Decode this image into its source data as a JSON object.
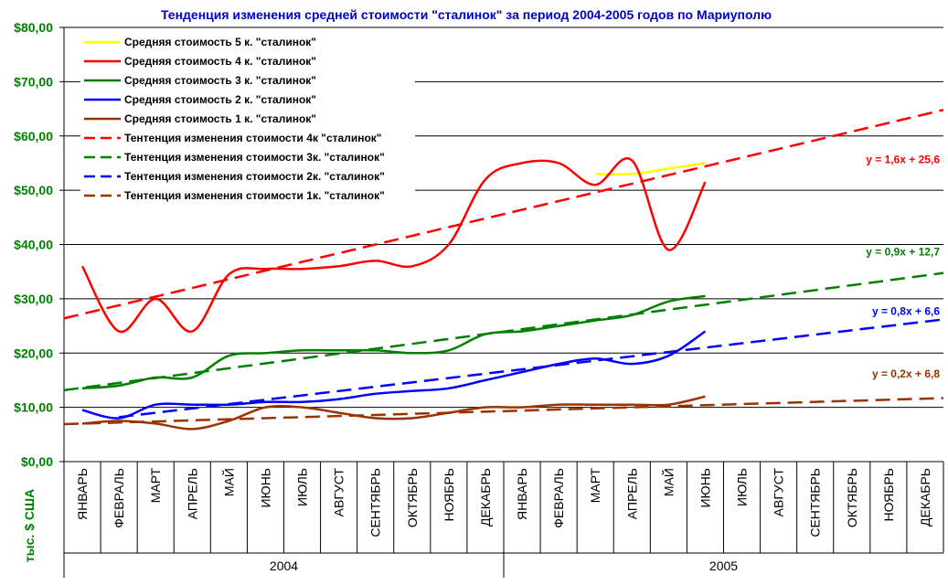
{
  "chart_data": {
    "type": "line",
    "title": "Тенденция изменения средней стоимости \"сталинок\" за период 2004-2005 годов по Мариуполю",
    "ylabel": "тыс. $ США",
    "ylim": [
      0,
      80
    ],
    "yticks": [
      "$0,00",
      "$10,00",
      "$20,00",
      "$30,00",
      "$40,00",
      "$50,00",
      "$60,00",
      "$70,00",
      "$80,00"
    ],
    "ytick_values": [
      0,
      10,
      20,
      30,
      40,
      50,
      60,
      70,
      80
    ],
    "grid": true,
    "legend_position": "top-left",
    "categories": [
      "ЯНВАРЬ",
      "ФЕВРАЛЬ",
      "МАРТ",
      "АПРЕЛЬ",
      "МАЙ",
      "ИЮНЬ",
      "ИЮЛЬ",
      "АВГУСТ",
      "СЕНТЯБРЬ",
      "ОКТЯБРЬ",
      "НОЯБРЬ",
      "ДЕКАБРЬ",
      "ЯНВАРЬ",
      "ФЕВРАЛЬ",
      "МАРТ",
      "АПРЕЛЬ",
      "МАЙ",
      "ИЮНЬ",
      "ИЮЛЬ",
      "АВГУСТ",
      "СЕНТЯБРЬ",
      "ОКТЯБРЬ",
      "НОЯБРЬ",
      "ДЕКАБРЬ"
    ],
    "years": [
      {
        "label": "2004",
        "start": 0,
        "end": 11
      },
      {
        "label": "2005",
        "start": 12,
        "end": 23
      }
    ],
    "series": [
      {
        "name": "Средняя стоимость 5 к. \"сталинок\"",
        "color": "#ffff00",
        "dash": false,
        "values": [
          null,
          null,
          null,
          null,
          null,
          null,
          null,
          null,
          null,
          null,
          null,
          null,
          null,
          null,
          53,
          53,
          54,
          55,
          null,
          null,
          null,
          null,
          null,
          null
        ]
      },
      {
        "name": "Средняя стоимость 4 к. \"сталинок\"",
        "color": "#ff0000",
        "dash": false,
        "values": [
          36,
          24,
          30,
          24,
          34.5,
          35.5,
          35.5,
          36,
          37,
          36,
          40,
          52,
          55,
          55,
          51,
          55.5,
          39,
          51.5,
          null,
          null,
          null,
          null,
          null,
          null
        ]
      },
      {
        "name": "Средняя стоимость 3 к. \"сталинок\"",
        "color": "#008000",
        "dash": false,
        "values": [
          13.5,
          14,
          15.5,
          15.5,
          19.5,
          20,
          20.5,
          20.5,
          20.5,
          20,
          20.5,
          23.5,
          24,
          25,
          26,
          27,
          29.5,
          30.5,
          null,
          null,
          null,
          null,
          null,
          null
        ]
      },
      {
        "name": "Средняя стоимость 2 к. \"сталинок\"",
        "color": "#0000ff",
        "dash": false,
        "values": [
          9.5,
          8,
          10.5,
          10.5,
          10.5,
          11,
          11,
          11.5,
          12.5,
          13,
          13.5,
          15,
          16.5,
          18,
          19,
          18,
          19.5,
          24,
          null,
          null,
          null,
          null,
          null,
          null
        ]
      },
      {
        "name": "Средняя стоимость 1 к. \"сталинок\"",
        "color": "#993300",
        "dash": false,
        "values": [
          7,
          7.5,
          7,
          6,
          7.5,
          10,
          10,
          9,
          8,
          8,
          9,
          10,
          10,
          10.5,
          10.5,
          10.5,
          10.5,
          12,
          null,
          null,
          null,
          null,
          null,
          null
        ]
      },
      {
        "name": "Тентенция изменения стоимости 4к \"сталинок\"",
        "color": "#ff0000",
        "dash": true,
        "trend": {
          "slope": 1.6,
          "intercept": 25.6,
          "x_start": 0.5,
          "x_end": 24.5
        }
      },
      {
        "name": "Тентенция изменения стоимости 3к. \"сталинок\"",
        "color": "#008000",
        "dash": true,
        "trend": {
          "slope": 0.9,
          "intercept": 12.7,
          "x_start": 0.5,
          "x_end": 24.5
        }
      },
      {
        "name": "Тентенция изменения стоимости 2к. \"сталинок\"",
        "color": "#0000ff",
        "dash": true,
        "trend": {
          "slope": 0.8,
          "intercept": 6.6,
          "x_start": 2,
          "x_end": 24.5
        }
      },
      {
        "name": "Тентенция изменения стоимости 1к. \"сталинок\"",
        "color": "#993300",
        "dash": true,
        "trend": {
          "slope": 0.2,
          "intercept": 6.8,
          "x_start": 0.5,
          "x_end": 24.5
        }
      }
    ],
    "annotations": [
      {
        "text": "y = 1,6x + 25,6",
        "color": "#ff0000",
        "value": 55
      },
      {
        "text": "y = 0,9x + 12,7",
        "color": "#008000",
        "value": 38
      },
      {
        "text": "y = 0,8x + 6,6",
        "color": "#0000ff",
        "value": 27
      },
      {
        "text": "y = 0,2x + 6,8",
        "color": "#993300",
        "value": 15.5
      }
    ]
  }
}
